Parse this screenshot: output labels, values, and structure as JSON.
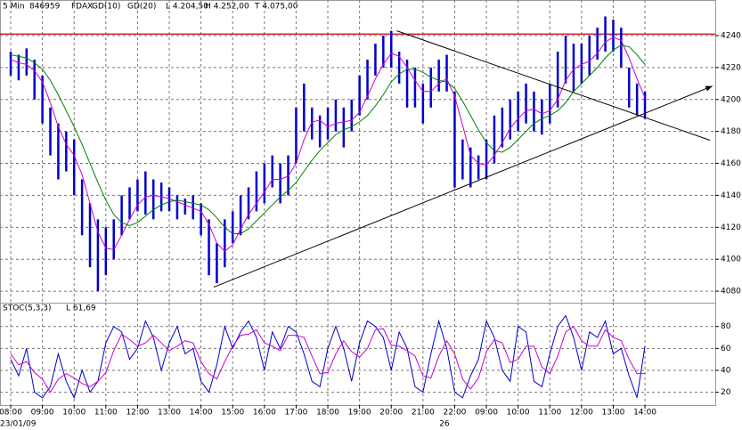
{
  "chart_data": [
    {
      "type": "range",
      "header": [
        "5 Min",
        "846959",
        "FDAX"
      ],
      "stats": [
        "L 4.204,50",
        "H 4.252,00",
        "T 4.075,00"
      ],
      "price": {
        "color": "#0000cc",
        "high": [
          4230,
          4228,
          4232,
          4225,
          4215,
          4195,
          4185,
          4180,
          4175,
          4150,
          4135,
          4125,
          4120,
          4125,
          4140,
          4145,
          4150,
          4155,
          4150,
          4148,
          4145,
          4140,
          4138,
          4140,
          4135,
          4125,
          4110,
          4125,
          4130,
          4140,
          4145,
          4155,
          4160,
          4165,
          4160,
          4165,
          4195,
          4210,
          4195,
          4190,
          4195,
          4200,
          4195,
          4200,
          4215,
          4225,
          4235,
          4240,
          4243,
          4230,
          4225,
          4220,
          4210,
          4220,
          4225,
          4228,
          4205,
          4175,
          4170,
          4165,
          4175,
          4190,
          4195,
          4200,
          4205,
          4210,
          4205,
          4200,
          4210,
          4230,
          4240,
          4235,
          4235,
          4240,
          4245,
          4252,
          4250,
          4245,
          4220,
          4210,
          4205
        ],
        "low": [
          4215,
          4212,
          4215,
          4200,
          4185,
          4165,
          4150,
          4155,
          4140,
          4115,
          4095,
          4080,
          4090,
          4100,
          4115,
          4125,
          4130,
          4128,
          4125,
          4130,
          4130,
          4125,
          4128,
          4125,
          4115,
          4090,
          4085,
          4095,
          4110,
          4115,
          4125,
          4130,
          4135,
          4145,
          4135,
          4140,
          4160,
          4180,
          4175,
          4170,
          4175,
          4180,
          4170,
          4180,
          4190,
          4200,
          4215,
          4220,
          4220,
          4210,
          4195,
          4195,
          4185,
          4195,
          4205,
          4205,
          4145,
          4150,
          4145,
          4150,
          4150,
          4160,
          4170,
          4175,
          4180,
          4185,
          4180,
          4178,
          4185,
          4195,
          4210,
          4205,
          4210,
          4215,
          4225,
          4230,
          4230,
          4220,
          4195,
          4190,
          4188
        ]
      },
      "series": [
        {
          "name": "GD(10)",
          "color": "#cc00cc",
          "values": [
            4225,
            4223,
            4222,
            4218,
            4211,
            4198,
            4183,
            4172,
            4165,
            4153,
            4135,
            4117,
            4107,
            4106,
            4115,
            4125,
            4134,
            4139,
            4140,
            4139,
            4138,
            4136,
            4134,
            4132,
            4130,
            4122,
            4110,
            4105,
            4109,
            4119,
            4128,
            4135,
            4142,
            4150,
            4150,
            4152,
            4160,
            4175,
            4186,
            4187,
            4183,
            4185,
            4186,
            4187,
            4192,
            4202,
            4213,
            4222,
            4229,
            4227,
            4220,
            4212,
            4205,
            4205,
            4210,
            4213,
            4202,
            4184,
            4165,
            4160,
            4159,
            4165,
            4173,
            4182,
            4188,
            4193,
            4194,
            4191,
            4193,
            4200,
            4212,
            4219,
            4222,
            4224,
            4229,
            4236,
            4239,
            4237,
            4226,
            4213,
            4201
          ]
        },
        {
          "name": "GD(20)",
          "color": "#008000",
          "values": [
            4228,
            4227,
            4226,
            4223,
            4219,
            4212,
            4203,
            4193,
            4183,
            4172,
            4160,
            4148,
            4137,
            4128,
            4123,
            4121,
            4123,
            4127,
            4131,
            4134,
            4136,
            4137,
            4136,
            4135,
            4134,
            4131,
            4126,
            4120,
            4116,
            4116,
            4119,
            4124,
            4129,
            4134,
            4139,
            4143,
            4148,
            4155,
            4162,
            4168,
            4173,
            4178,
            4181,
            4183,
            4186,
            4190,
            4196,
            4203,
            4211,
            4216,
            4219,
            4219,
            4217,
            4214,
            4212,
            4211,
            4207,
            4199,
            4190,
            4181,
            4173,
            4168,
            4167,
            4170,
            4175,
            4180,
            4185,
            4188,
            4190,
            4193,
            4198,
            4205,
            4210,
            4215,
            4220,
            4226,
            4231,
            4234,
            4233,
            4228,
            4222
          ]
        }
      ],
      "lines": [
        {
          "x": [
            25.6,
            88.5
          ],
          "y": [
            4082.5,
            4208.4
          ],
          "color": "#000000"
        },
        {
          "x": [
            48.7,
            88.2
          ],
          "y": [
            4243,
            4174.5
          ],
          "color": "#000000"
        }
      ],
      "hline": {
        "y": 4241,
        "color": "#c00000"
      },
      "xlim": [
        -1.35,
        88.87
      ],
      "ylim": [
        4072.8,
        4262.3
      ],
      "yticks": [
        4080,
        4100,
        4120,
        4140,
        4160,
        4180,
        4200,
        4220,
        4240
      ],
      "grid": true
    },
    {
      "type": "line",
      "title": "STOC(5,3,3)",
      "last_label": "L 61,69",
      "series": [
        {
          "color": "#0000cc",
          "values": [
            50,
            35,
            60,
            20,
            15,
            25,
            55,
            30,
            15,
            40,
            20,
            30,
            65,
            80,
            75,
            50,
            60,
            85,
            70,
            40,
            65,
            80,
            55,
            60,
            30,
            20,
            45,
            80,
            60,
            75,
            85,
            70,
            40,
            75,
            60,
            80,
            75,
            55,
            30,
            25,
            60,
            80,
            60,
            30,
            65,
            85,
            80,
            70,
            40,
            75,
            60,
            25,
            20,
            55,
            85,
            60,
            20,
            15,
            35,
            50,
            85,
            70,
            40,
            30,
            80,
            75,
            30,
            25,
            55,
            80,
            90,
            70,
            40,
            75,
            70,
            85,
            55,
            60,
            35,
            15,
            62
          ]
        },
        {
          "color": "#cc00cc",
          "values": [
            55,
            45,
            48,
            38,
            32,
            20,
            32,
            37,
            33,
            28,
            25,
            30,
            38,
            58,
            73,
            68,
            62,
            65,
            72,
            65,
            58,
            62,
            67,
            65,
            48,
            37,
            32,
            48,
            62,
            72,
            73,
            77,
            65,
            62,
            58,
            72,
            72,
            70,
            53,
            37,
            38,
            55,
            67,
            57,
            52,
            60,
            77,
            78,
            63,
            62,
            58,
            53,
            35,
            33,
            53,
            67,
            55,
            32,
            23,
            33,
            57,
            68,
            65,
            47,
            50,
            62,
            62,
            43,
            37,
            53,
            75,
            80,
            67,
            62,
            62,
            77,
            70,
            67,
            50,
            37,
            37
          ]
        }
      ],
      "xlim": [
        -1.35,
        88.87
      ],
      "ylim": [
        8.3,
        101.7
      ],
      "yticks": [
        20,
        40,
        60,
        80
      ],
      "xticks": [
        {
          "value": 0,
          "label": "08:00"
        },
        {
          "value": 4,
          "label": "09:00"
        },
        {
          "value": 8,
          "label": "10:00"
        },
        {
          "value": 12,
          "label": "11:00"
        },
        {
          "value": 16,
          "label": "12:00"
        },
        {
          "value": 20,
          "label": "13:00"
        },
        {
          "value": 24,
          "label": "14:00"
        },
        {
          "value": 28,
          "label": "15:00"
        },
        {
          "value": 32,
          "label": "16:00"
        },
        {
          "value": 36,
          "label": "17:00"
        },
        {
          "value": 40,
          "label": "18:00"
        },
        {
          "value": 44,
          "label": "19:00"
        },
        {
          "value": 48,
          "label": "20:00"
        },
        {
          "value": 52,
          "label": "21:00"
        },
        {
          "value": 56,
          "label": "22:00"
        },
        {
          "value": 60,
          "label": "09:00"
        },
        {
          "value": 64,
          "label": "10:00"
        },
        {
          "value": 68,
          "label": "11:00"
        },
        {
          "value": 72,
          "label": "12:00"
        },
        {
          "value": 76,
          "label": "13:00"
        },
        {
          "value": 80,
          "label": "14:00"
        }
      ],
      "date_labels": [
        {
          "value": 0,
          "label": "23/01/09"
        },
        {
          "value": 55.4,
          "label": "26"
        }
      ],
      "grid": true
    }
  ]
}
